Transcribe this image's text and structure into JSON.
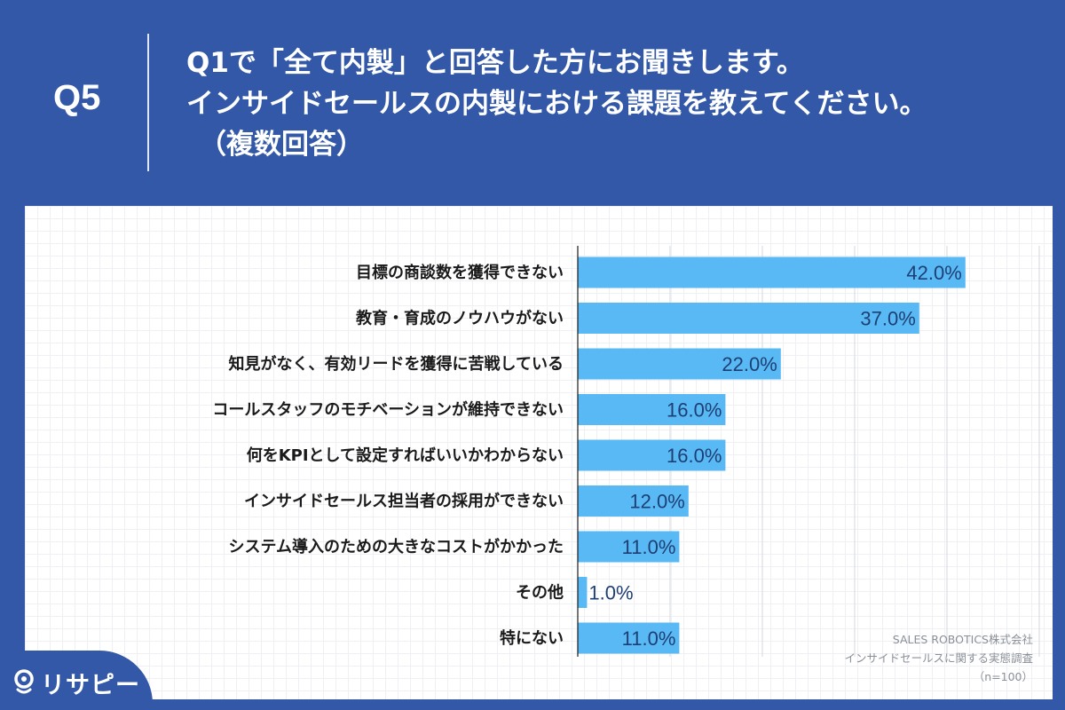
{
  "header": {
    "label": "Q5",
    "question_lines": [
      "Q1で「全て内製」と回答した方にお聞きします。",
      "インサイドセールスの内製における課題を教えてください。",
      "（複数回答）"
    ]
  },
  "colors": {
    "background": "#3358a8",
    "bar": "#59b9f5",
    "value_text": "#1e3f73"
  },
  "chart_data": {
    "type": "bar",
    "orientation": "horizontal",
    "categories": [
      "目標の商談数を獲得できない",
      "教育・育成のノウハウがない",
      "知見がなく、有効リードを獲得に苦戦している",
      "コールスタッフのモチベーションが維持できない",
      "何をKPIとして設定すればいいかわからない",
      "インサイドセールス担当者の採用ができない",
      "システム導入のための大きなコストがかかった",
      "その他",
      "特にない"
    ],
    "values": [
      42.0,
      37.0,
      22.0,
      16.0,
      16.0,
      12.0,
      11.0,
      1.0,
      11.0
    ],
    "value_labels": [
      "42.0%",
      "37.0%",
      "22.0%",
      "16.0%",
      "16.0%",
      "12.0%",
      "11.0%",
      "1.0%",
      "11.0%"
    ],
    "xlim": [
      0,
      50
    ],
    "grid": true
  },
  "source": {
    "company": "SALES ROBOTICS株式会社",
    "survey": "インサイドセールスに関する実態調査",
    "sample": "（n=100）"
  },
  "logo": {
    "text": "リサピー",
    "icon": "map-pin-icon"
  }
}
